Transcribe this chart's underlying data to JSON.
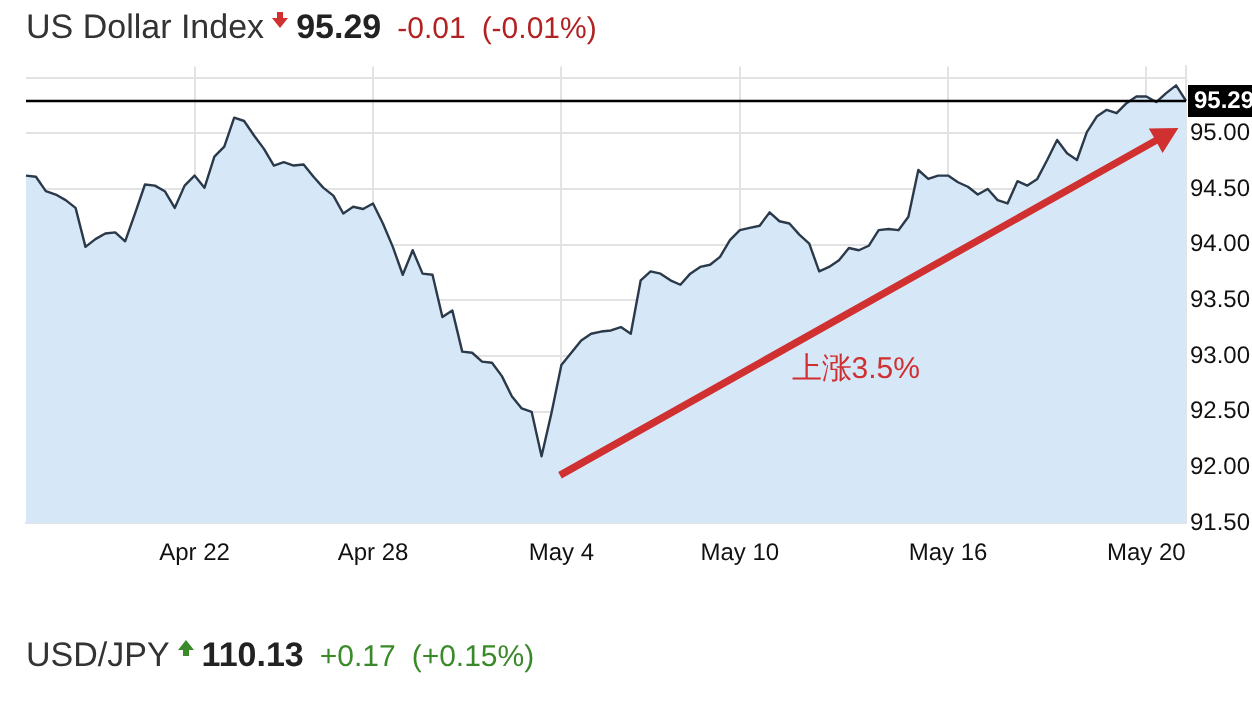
{
  "chart_data": {
    "type": "area",
    "title": "US Dollar Index",
    "annotations": [
      "95.29",
      "-0.01",
      "(-0.01%)",
      "上涨3.5%",
      "USD/JPY",
      "110.13",
      "+0.17",
      "(+0.15%)"
    ],
    "categories": [
      null,
      null,
      null,
      null,
      null,
      null,
      null,
      null,
      null,
      null,
      null,
      null,
      null,
      null,
      null,
      null,
      null,
      "Apr 22",
      null,
      null,
      null,
      null,
      null,
      null,
      null,
      null,
      null,
      null,
      null,
      null,
      null,
      null,
      null,
      null,
      null,
      "Apr 28",
      null,
      null,
      null,
      null,
      null,
      null,
      null,
      null,
      null,
      null,
      null,
      null,
      null,
      null,
      null,
      null,
      null,
      null,
      "May 4",
      null,
      null,
      null,
      null,
      null,
      null,
      null,
      null,
      null,
      null,
      null,
      null,
      null,
      null,
      null,
      null,
      null,
      "May 10",
      null,
      null,
      null,
      null,
      null,
      null,
      null,
      null,
      null,
      null,
      null,
      null,
      null,
      null,
      null,
      null,
      null,
      null,
      null,
      null,
      "May 16",
      null,
      null,
      null,
      null,
      null,
      null,
      null,
      null,
      null,
      null,
      null,
      null,
      null,
      null,
      null,
      null,
      null,
      null,
      null,
      "May 20",
      null,
      null,
      null,
      null
    ],
    "series": [
      {
        "color": "#2b3a4a",
        "values": [
          94.62,
          94.61,
          94.48,
          94.45,
          94.4,
          94.33,
          93.98,
          94.05,
          94.1,
          94.11,
          94.03,
          94.28,
          94.54,
          94.53,
          94.48,
          94.33,
          94.53,
          94.62,
          94.51,
          94.79,
          94.88,
          95.14,
          95.11,
          94.98,
          94.86,
          94.71,
          94.74,
          94.71,
          94.72,
          94.61,
          94.51,
          94.44,
          94.28,
          94.34,
          94.32,
          94.37,
          94.19,
          93.98,
          93.73,
          93.95,
          93.74,
          93.73,
          93.35,
          93.41,
          93.04,
          93.03,
          92.95,
          92.94,
          92.82,
          92.64,
          92.53,
          92.5,
          92.1,
          92.49,
          92.92,
          93.03,
          93.14,
          93.2,
          93.22,
          93.23,
          93.26,
          93.2,
          93.68,
          93.76,
          93.74,
          93.68,
          93.64,
          93.74,
          93.8,
          93.82,
          93.89,
          94.04,
          94.13,
          94.15,
          94.17,
          94.29,
          94.21,
          94.19,
          94.09,
          94.01,
          93.76,
          93.8,
          93.86,
          93.97,
          93.95,
          93.99,
          94.13,
          94.14,
          94.13,
          94.25,
          94.67,
          94.59,
          94.62,
          94.62,
          94.56,
          94.52,
          94.45,
          94.5,
          94.4,
          94.37,
          94.57,
          94.53,
          94.59,
          94.76,
          94.94,
          94.82,
          94.76,
          95.01,
          95.15,
          95.21,
          95.18,
          95.27,
          95.33,
          95.33,
          95.28,
          95.36,
          95.43,
          95.29
        ]
      }
    ],
    "ylim": [
      91.5,
      95.6
    ],
    "yticks": [
      {
        "value": 91.5,
        "label": "91.50"
      },
      {
        "value": 92,
        "label": "92.00"
      },
      {
        "value": 92.5,
        "label": "92.50"
      },
      {
        "value": 93,
        "label": "93.00"
      },
      {
        "value": 93.5,
        "label": "93.50"
      },
      {
        "value": 94,
        "label": "94.00"
      },
      {
        "value": 94.5,
        "label": "94.50"
      },
      {
        "value": 95,
        "label": "95.00"
      },
      {
        "value": 95.5,
        "label": null
      }
    ],
    "ref_lines": [
      {
        "axis": "y",
        "value": 95.29,
        "label": "95.29",
        "color": "#000000"
      }
    ],
    "grid": true,
    "legend": false,
    "marker": "none",
    "line_style": "solid"
  }
}
